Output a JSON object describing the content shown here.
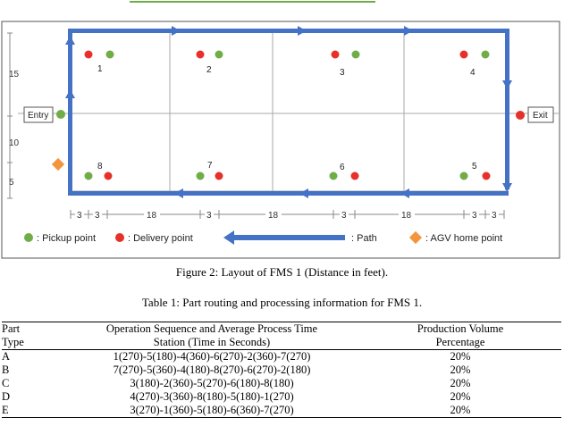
{
  "layout": {
    "scale_left": [
      "15",
      "10",
      "5"
    ],
    "entry_label": "Entry",
    "exit_label": "Exit",
    "stations": [
      "1",
      "2",
      "3",
      "4",
      "5",
      "6",
      "7",
      "8"
    ],
    "dim_labels": [
      "3",
      "3",
      "18",
      "3",
      "18",
      "3",
      "18",
      "3",
      "3"
    ],
    "legend": {
      "pickup": ": Pickup point",
      "delivery": ": Delivery point",
      "path": ": Path",
      "agv_home": ": AGV home point"
    },
    "colors": {
      "pickup": "#70ad47",
      "delivery": "#e8302a",
      "path": "#4472c4",
      "agv_home": "#f4953e"
    }
  },
  "figure_caption": "Figure 2: Layout of FMS 1 (Distance in feet).",
  "table_caption": "Table 1: Part routing and processing information for FMS 1.",
  "table": {
    "headers": {
      "col1": [
        "Part",
        "Type"
      ],
      "col2": [
        "Operation Sequence and Average Process Time",
        "Station (Time in Seconds)"
      ],
      "col3": [
        "Production Volume",
        "Percentage"
      ]
    },
    "rows": [
      {
        "type": "A",
        "sequence": "1(270)-5(180)-4(360)-6(270)-2(360)-7(270)",
        "volume": "20%"
      },
      {
        "type": "B",
        "sequence": "7(270)-5(360)-4(180)-8(270)-6(270)-2(180)",
        "volume": "20%"
      },
      {
        "type": "C",
        "sequence": "3(180)-2(360)-5(270)-6(180)-8(180)",
        "volume": "20%"
      },
      {
        "type": "D",
        "sequence": "4(270)-3(360)-8(180)-5(180)-1(270)",
        "volume": "20%"
      },
      {
        "type": "E",
        "sequence": "3(270)-1(360)-5(180)-6(360)-7(270)",
        "volume": "20%"
      }
    ]
  }
}
